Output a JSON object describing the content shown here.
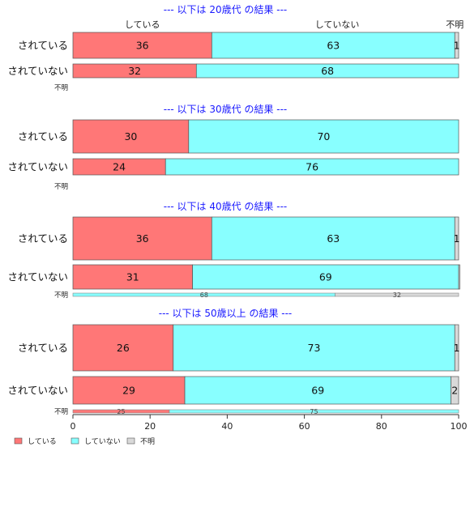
{
  "chart_data": {
    "type": "bar",
    "orientation": "horizontal",
    "stacked": true,
    "xlim": [
      0,
      100
    ],
    "x_ticks": [
      "0",
      "20",
      "40",
      "60",
      "80",
      "100"
    ],
    "colors": {
      "している": "#ff7777",
      "していない": "#88ffff",
      "不明": "#d9d9d9"
    },
    "column_headers": [
      "している",
      "していない",
      "不明"
    ],
    "legend": {
      "placement": "bottom-left",
      "entries": [
        {
          "label": "している",
          "color": "#ff7777"
        },
        {
          "label": "していない",
          "color": "#88ffff"
        },
        {
          "label": "不明",
          "color": "#d9d9d9"
        }
      ]
    },
    "panels": [
      {
        "title": "--- 以下は 20歳代 の結果 ---",
        "bars": [
          {
            "label": "されている",
            "values": [
              36,
              63,
              1
            ],
            "labels": [
              "36",
              "63",
              "1"
            ]
          },
          {
            "label": "されていない",
            "values": [
              32,
              68,
              0
            ],
            "labels": [
              "32",
              "68",
              ""
            ]
          }
        ],
        "unknown": {
          "label": "不明",
          "values": [],
          "labels": []
        }
      },
      {
        "title": "--- 以下は 30歳代 の結果 ---",
        "bars": [
          {
            "label": "されている",
            "values": [
              30,
              70,
              0
            ],
            "labels": [
              "30",
              "70",
              ""
            ]
          },
          {
            "label": "されていない",
            "values": [
              24,
              76,
              0
            ],
            "labels": [
              "24",
              "76",
              ""
            ]
          }
        ],
        "unknown": {
          "label": "不明",
          "values": [],
          "labels": []
        }
      },
      {
        "title": "--- 以下は 40歳代 の結果 ---",
        "bars": [
          {
            "label": "されている",
            "values": [
              36,
              63,
              1
            ],
            "labels": [
              "36",
              "63",
              "1"
            ]
          },
          {
            "label": "されていない",
            "values": [
              31,
              69,
              0.3
            ],
            "labels": [
              "31",
              "69",
              ""
            ]
          }
        ],
        "unknown": {
          "label": "不明",
          "values": [
            0,
            68,
            32
          ],
          "labels": [
            "",
            "68",
            "32"
          ]
        }
      },
      {
        "title": "--- 以下は 50歳以上 の結果 ---",
        "bars": [
          {
            "label": "されている",
            "values": [
              26,
              73,
              1
            ],
            "labels": [
              "26",
              "73",
              "1"
            ]
          },
          {
            "label": "されていない",
            "values": [
              29,
              69,
              2
            ],
            "labels": [
              "29",
              "69",
              "2"
            ]
          }
        ],
        "unknown": {
          "label": "不明",
          "values": [
            25,
            75,
            0
          ],
          "labels": [
            "25",
            "75",
            ""
          ]
        }
      }
    ]
  }
}
